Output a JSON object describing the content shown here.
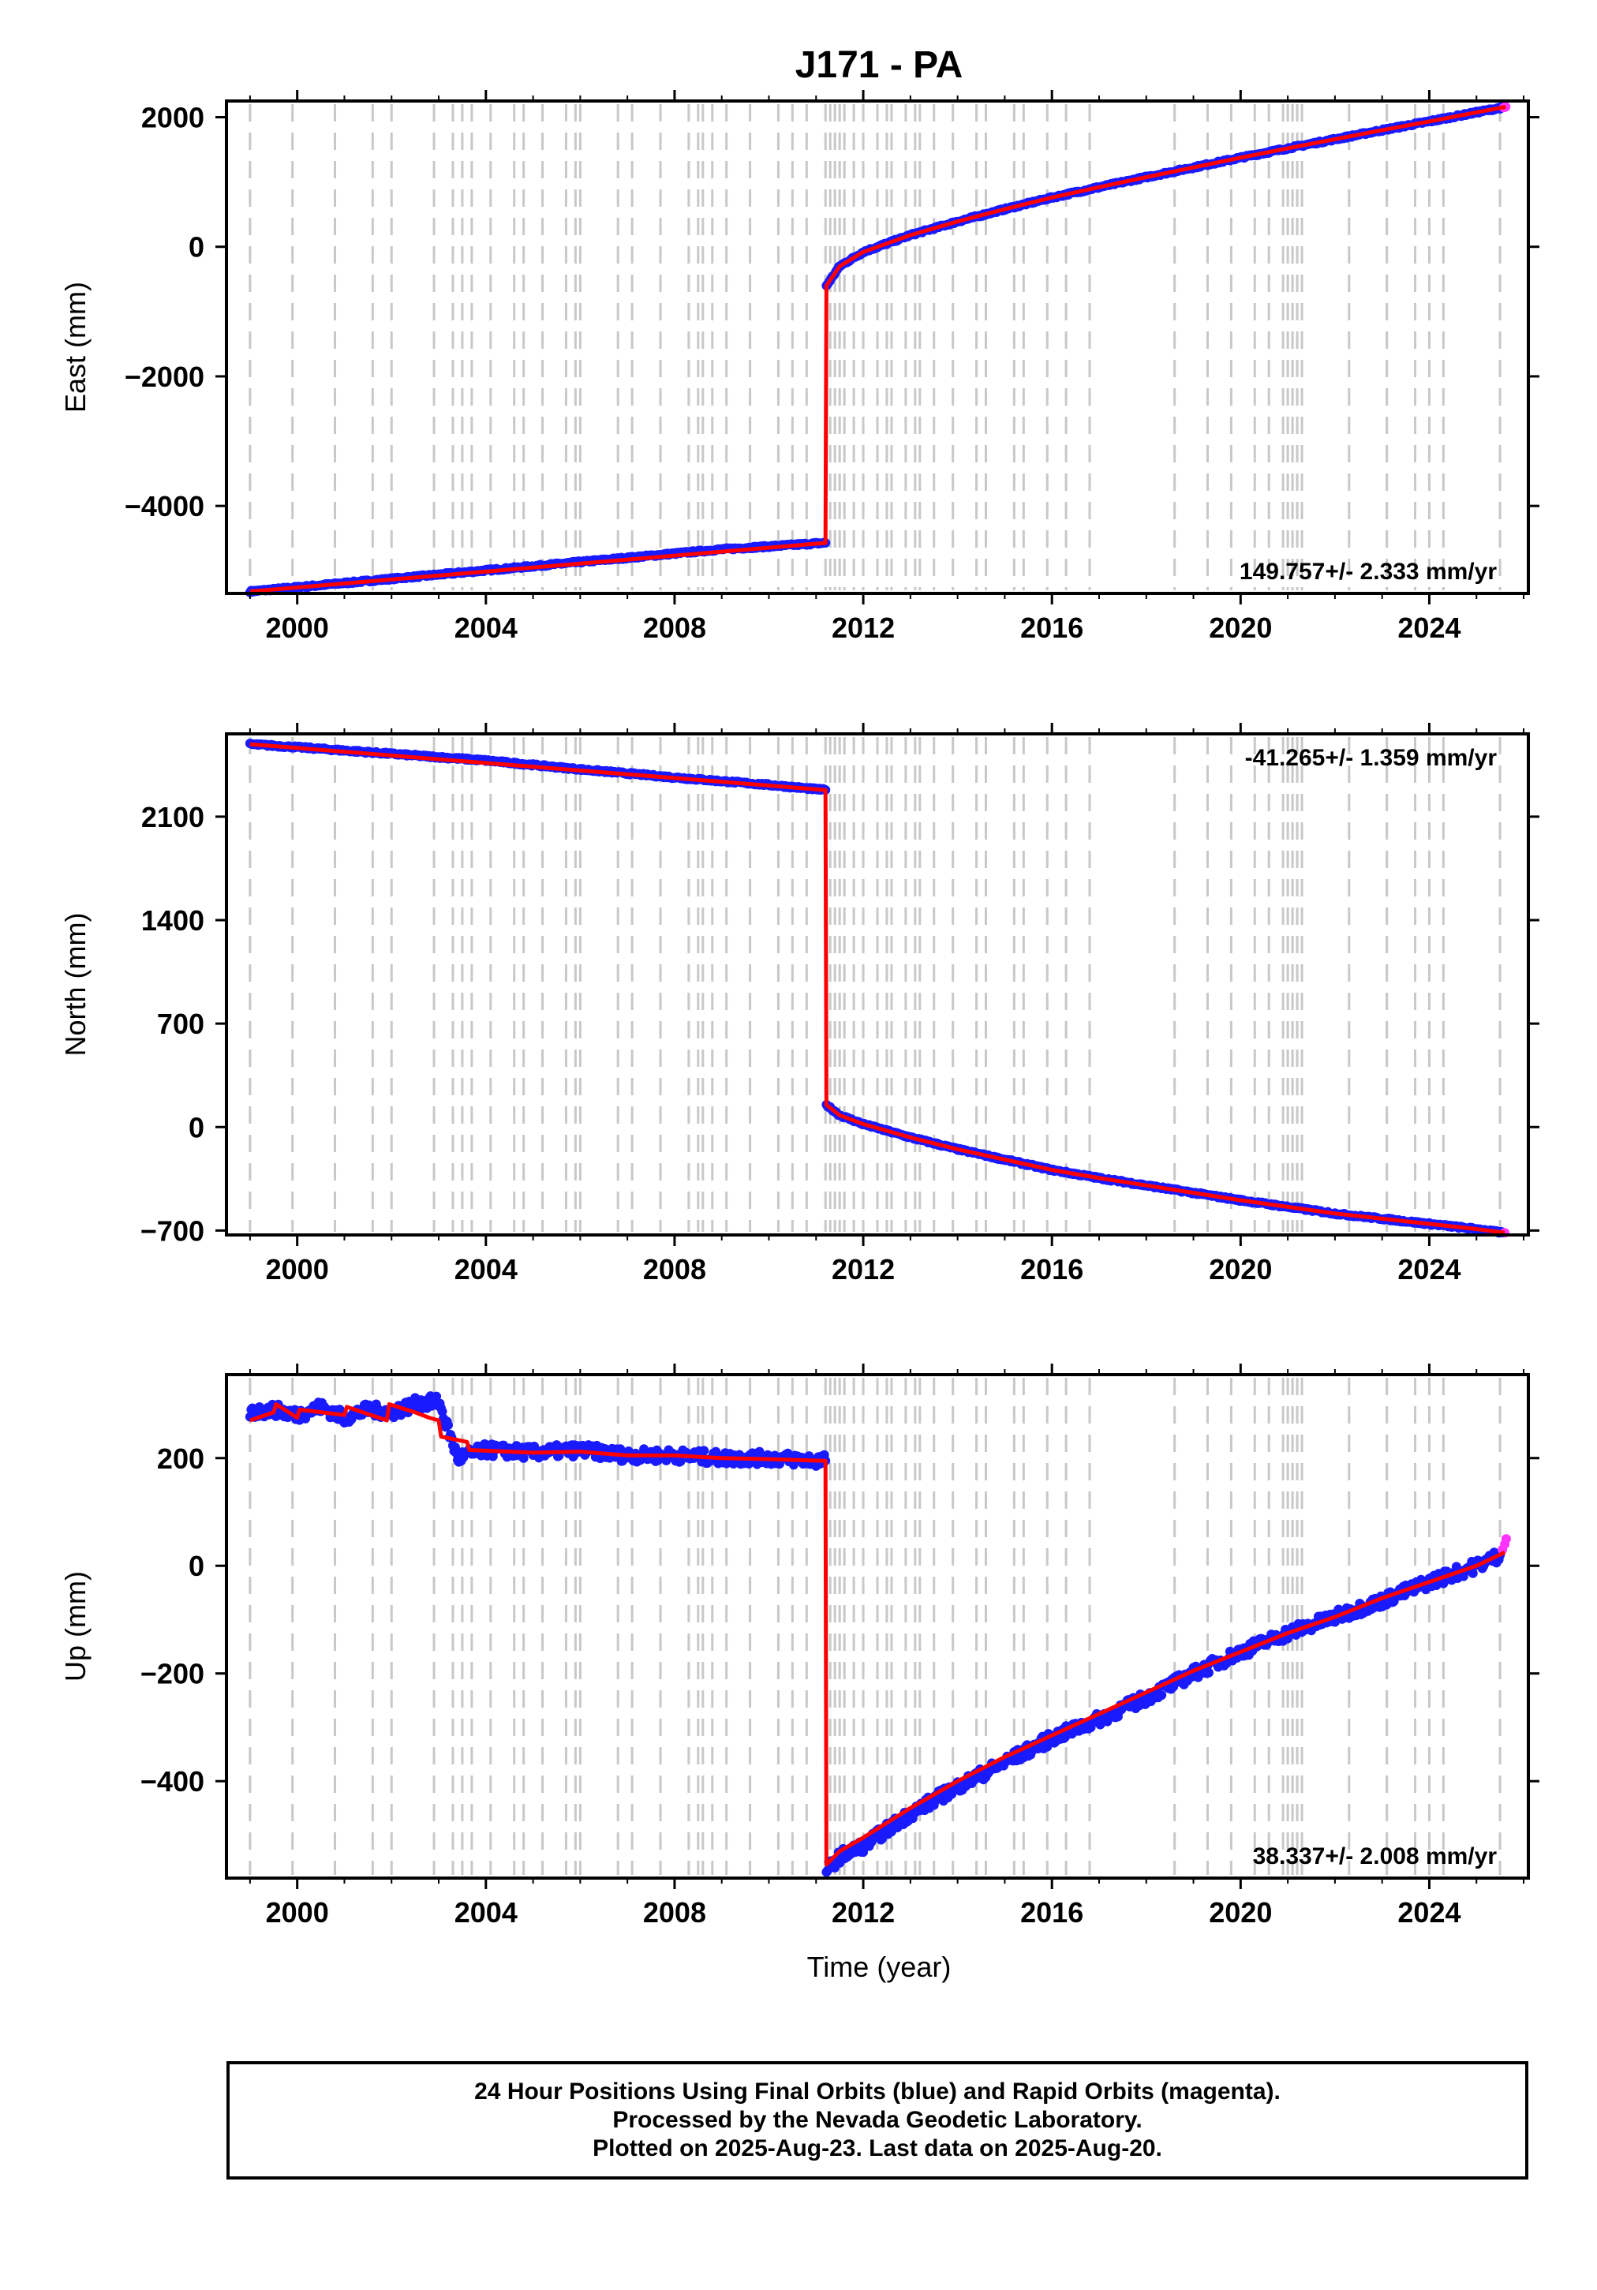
{
  "title": "J171 - PA",
  "xlabel": "Time (year)",
  "colors": {
    "final_orbits": "#1a1aff",
    "rapid_orbits": "#ff33ff",
    "model": "#ff0000",
    "event_lines": "#c8c8c8"
  },
  "x_ticks": [
    "2000",
    "2004",
    "2008",
    "2012",
    "2016",
    "2020",
    "2024"
  ],
  "chart_data": [
    {
      "type": "scatter",
      "component": "east",
      "ylabel": "East (mm)",
      "rate_label": "149.757+/- 2.333 mm/yr",
      "rate_position": "bottom-right",
      "xlim": [
        1998.5,
        2026.1
      ],
      "ylim": [
        -5350,
        2250
      ],
      "y_ticks": [
        "2000",
        "0",
        "−2000",
        "−4000"
      ],
      "y_tick_values": [
        2000,
        0,
        -2000,
        -4000
      ],
      "series": [
        {
          "name": "Final Orbits",
          "role": "data",
          "x": [
            1999.0,
            2000.0,
            2001.0,
            2002.0,
            2003.0,
            2004.0,
            2005.0,
            2006.0,
            2007.0,
            2008.0,
            2009.0,
            2010.0,
            2011.2,
            2011.22,
            2011.5,
            2012.0,
            2013.0,
            2014.0,
            2015.0,
            2016.0,
            2017.0,
            2018.0,
            2019.0,
            2020.0,
            2021.0,
            2022.0,
            2023.0,
            2024.0,
            2025.0,
            2025.55
          ],
          "y": [
            -5320,
            -5255,
            -5190,
            -5125,
            -5060,
            -4995,
            -4930,
            -4865,
            -4800,
            -4735,
            -4670,
            -4625,
            -4570,
            -600,
            -300,
            -80,
            180,
            390,
            580,
            760,
            920,
            1075,
            1225,
            1375,
            1520,
            1660,
            1800,
            1935,
            2075,
            2150
          ]
        },
        {
          "name": "Rapid Orbits",
          "role": "data",
          "x": [
            2025.58,
            2025.62
          ],
          "y": [
            2150,
            2160
          ]
        },
        {
          "name": "Model",
          "role": "model",
          "x": [
            1999.0,
            2011.2,
            2011.22,
            2011.5,
            2012.0,
            2013.0,
            2014.0,
            2015.0,
            2016.0,
            2017.0,
            2018.0,
            2019.0,
            2020.0,
            2021.0,
            2022.0,
            2023.0,
            2024.0,
            2025.0,
            2025.62
          ],
          "y": [
            -5320,
            -4570,
            -600,
            -300,
            -80,
            180,
            390,
            580,
            760,
            920,
            1075,
            1225,
            1375,
            1520,
            1660,
            1800,
            1935,
            2075,
            2160
          ]
        }
      ]
    },
    {
      "type": "scatter",
      "component": "north",
      "ylabel": "North (mm)",
      "rate_label": "-41.265+/- 1.359 mm/yr",
      "rate_position": "top-right",
      "xlim": [
        1998.5,
        2026.1
      ],
      "ylim": [
        -730,
        2660
      ],
      "y_ticks": [
        "2100",
        "1400",
        "700",
        "0",
        "−700"
      ],
      "y_tick_values": [
        2100,
        1400,
        700,
        0,
        -700
      ],
      "series": [
        {
          "name": "Final Orbits",
          "role": "data",
          "x": [
            1999.0,
            2000.0,
            2002.0,
            2004.0,
            2006.0,
            2008.0,
            2010.0,
            2011.2,
            2011.22,
            2011.5,
            2012.0,
            2013.0,
            2014.0,
            2015.0,
            2016.0,
            2017.0,
            2018.0,
            2019.0,
            2020.0,
            2021.0,
            2022.0,
            2023.0,
            2024.0,
            2025.0,
            2025.55
          ],
          "y": [
            2590,
            2570,
            2525,
            2480,
            2420,
            2365,
            2315,
            2280,
            150,
            80,
            20,
            -70,
            -150,
            -220,
            -290,
            -345,
            -395,
            -445,
            -495,
            -540,
            -585,
            -620,
            -655,
            -690,
            -715
          ]
        },
        {
          "name": "Rapid Orbits",
          "role": "data",
          "x": [
            2025.6
          ],
          "y": [
            -715
          ]
        },
        {
          "name": "Model",
          "role": "model",
          "x": [
            1999.0,
            2011.2,
            2011.22,
            2011.5,
            2012.0,
            2013.0,
            2014.0,
            2015.0,
            2016.0,
            2017.0,
            2018.0,
            2019.0,
            2020.0,
            2021.0,
            2022.0,
            2023.0,
            2024.0,
            2025.0,
            2025.6
          ],
          "y": [
            2590,
            2280,
            150,
            80,
            20,
            -70,
            -150,
            -220,
            -290,
            -345,
            -395,
            -445,
            -495,
            -540,
            -585,
            -620,
            -655,
            -690,
            -715
          ]
        }
      ]
    },
    {
      "type": "scatter",
      "component": "up",
      "ylabel": "Up (mm)",
      "rate_label": "38.337+/- 2.008 mm/yr",
      "rate_position": "bottom-right",
      "xlim": [
        1998.5,
        2026.1
      ],
      "ylim": [
        -580,
        355
      ],
      "y_ticks": [
        "200",
        "0",
        "−200",
        "−400"
      ],
      "y_tick_values": [
        200,
        0,
        -200,
        -400
      ],
      "series": [
        {
          "name": "Final Orbits",
          "role": "data",
          "x": [
            1999.0,
            1999.5,
            2000.0,
            2000.5,
            2001.0,
            2001.5,
            2002.0,
            2002.5,
            2003.0,
            2003.4,
            2004.0,
            2005.0,
            2006.0,
            2007.0,
            2008.0,
            2009.0,
            2010.0,
            2011.2,
            2011.22,
            2011.5,
            2012.0,
            2012.5,
            2013.0,
            2014.0,
            2015.0,
            2016.0,
            2017.0,
            2018.0,
            2019.0,
            2020.0,
            2021.0,
            2022.0,
            2023.0,
            2024.0,
            2025.0,
            2025.5
          ],
          "y": [
            285,
            290,
            280,
            295,
            275,
            290,
            285,
            300,
            305,
            200,
            215,
            210,
            215,
            205,
            205,
            200,
            200,
            195,
            -565,
            -540,
            -520,
            -490,
            -460,
            -410,
            -365,
            -320,
            -285,
            -245,
            -200,
            -160,
            -125,
            -95,
            -65,
            -30,
            0,
            20
          ]
        },
        {
          "name": "Rapid Orbits",
          "role": "data",
          "x": [
            2025.55,
            2025.6,
            2025.63
          ],
          "y": [
            30,
            40,
            50
          ]
        },
        {
          "name": "Model",
          "role": "model",
          "x": [
            1999.0,
            1999.5,
            1999.55,
            2000.0,
            2000.05,
            2001.0,
            2001.05,
            2001.9,
            2001.95,
            2002.5,
            2002.8,
            2003.0,
            2003.05,
            2003.6,
            2003.65,
            2005.0,
            2006.0,
            2007.0,
            2008.0,
            2009.0,
            2010.0,
            2011.2,
            2011.22,
            2011.5,
            2012.0,
            2013.0,
            2014.0,
            2015.0,
            2016.0,
            2017.0,
            2018.0,
            2019.0,
            2020.0,
            2021.0,
            2022.0,
            2023.0,
            2024.0,
            2025.0,
            2025.6
          ],
          "y": [
            270,
            285,
            300,
            275,
            290,
            280,
            295,
            270,
            300,
            285,
            275,
            270,
            240,
            230,
            215,
            210,
            212,
            205,
            205,
            200,
            198,
            195,
            -555,
            -530,
            -505,
            -450,
            -400,
            -355,
            -315,
            -275,
            -235,
            -195,
            -160,
            -125,
            -95,
            -60,
            -30,
            0,
            25
          ]
        }
      ],
      "event_lines_x": [
        1999.0,
        1999.9,
        2000.8,
        2001.6,
        2002.0,
        2002.9,
        2003.3,
        2003.5,
        2003.7,
        2004.1,
        2004.6,
        2004.8,
        2005.2,
        2005.7,
        2005.9,
        2006.0,
        2006.8,
        2007.1,
        2007.7,
        2008.3,
        2008.5,
        2008.6,
        2008.8,
        2009.1,
        2009.6,
        2010.2,
        2010.5,
        2010.8,
        2011.2,
        2011.3,
        2011.4,
        2011.5,
        2011.6,
        2011.8,
        2012.0,
        2012.3,
        2012.5,
        2012.6,
        2012.9,
        2013.1,
        2013.2,
        2013.5,
        2013.9,
        2014.4,
        2014.6,
        2015.2,
        2015.4,
        2015.9,
        2016.3,
        2016.8,
        2018.6,
        2019.3,
        2019.8,
        2020.3,
        2020.6,
        2020.9,
        2021.0,
        2021.1,
        2021.2,
        2021.3,
        2022.3,
        2023.1,
        2023.7,
        2024.0,
        2024.3,
        2025.5
      ]
    }
  ],
  "footer": {
    "line1": "24 Hour Positions Using Final Orbits (blue) and Rapid Orbits (magenta).",
    "line2": "Processed by the Nevada Geodetic Laboratory.",
    "line3": "Plotted on 2025-Aug-23. Last data on 2025-Aug-20."
  }
}
